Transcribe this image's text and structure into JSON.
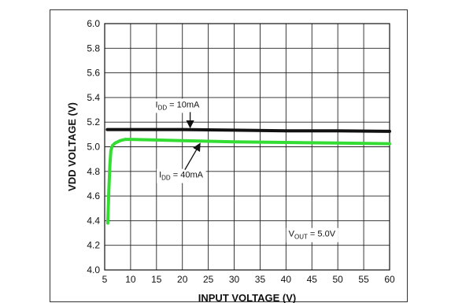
{
  "chart_data": {
    "type": "line",
    "xlabel": "INPUT VOLTAGE (V)",
    "ylabel": "VDD VOLTAGE (V)",
    "xlim": [
      5,
      60
    ],
    "ylim": [
      4.0,
      6.0
    ],
    "x_ticks": [
      5,
      10,
      15,
      20,
      25,
      30,
      35,
      40,
      45,
      50,
      55,
      60
    ],
    "y_ticks": [
      4.0,
      4.2,
      4.4,
      4.6,
      4.8,
      5.0,
      5.2,
      5.4,
      5.6,
      5.8,
      6.0
    ],
    "x_tick_labels": [
      "5",
      "10",
      "15",
      "20",
      "25",
      "30",
      "35",
      "40",
      "45",
      "50",
      "55",
      "60"
    ],
    "y_tick_labels": [
      "4.0",
      "4.2",
      "4.4",
      "4.6",
      "4.8",
      "5.0",
      "5.2",
      "5.4",
      "5.6",
      "5.8",
      "6.0"
    ],
    "grid": true,
    "series": [
      {
        "name": "IDD = 10mA",
        "color": "#111111",
        "x": [
          5.5,
          10,
          20,
          30,
          40,
          50,
          60
        ],
        "y": [
          5.14,
          5.14,
          5.14,
          5.135,
          5.13,
          5.13,
          5.125
        ]
      },
      {
        "name": "IDD = 40mA",
        "color": "#33dd33",
        "x": [
          5.6,
          5.8,
          6.0,
          6.2,
          6.5,
          7.0,
          8.0,
          9.0,
          10,
          15,
          20,
          30,
          40,
          50,
          60
        ],
        "y": [
          4.38,
          4.65,
          4.85,
          4.97,
          5.01,
          5.03,
          5.05,
          5.06,
          5.06,
          5.055,
          5.05,
          5.04,
          5.035,
          5.03,
          5.025
        ]
      }
    ],
    "annotations": {
      "idd10": {
        "prefix": "I",
        "sub": "DD",
        "suffix": " = 10mA",
        "x": 14.8,
        "y": 5.32,
        "arrow_to": [
          21.5,
          5.14
        ]
      },
      "idd40": {
        "prefix": "I",
        "sub": "DD",
        "suffix": " = 40mA",
        "x": 15.5,
        "y": 4.75,
        "arrow_to": [
          23.3,
          5.05
        ]
      },
      "vout": {
        "prefix": "V",
        "sub": "OUT",
        "suffix": " = 5.0V",
        "x": 40.5,
        "y": 4.27
      }
    }
  }
}
